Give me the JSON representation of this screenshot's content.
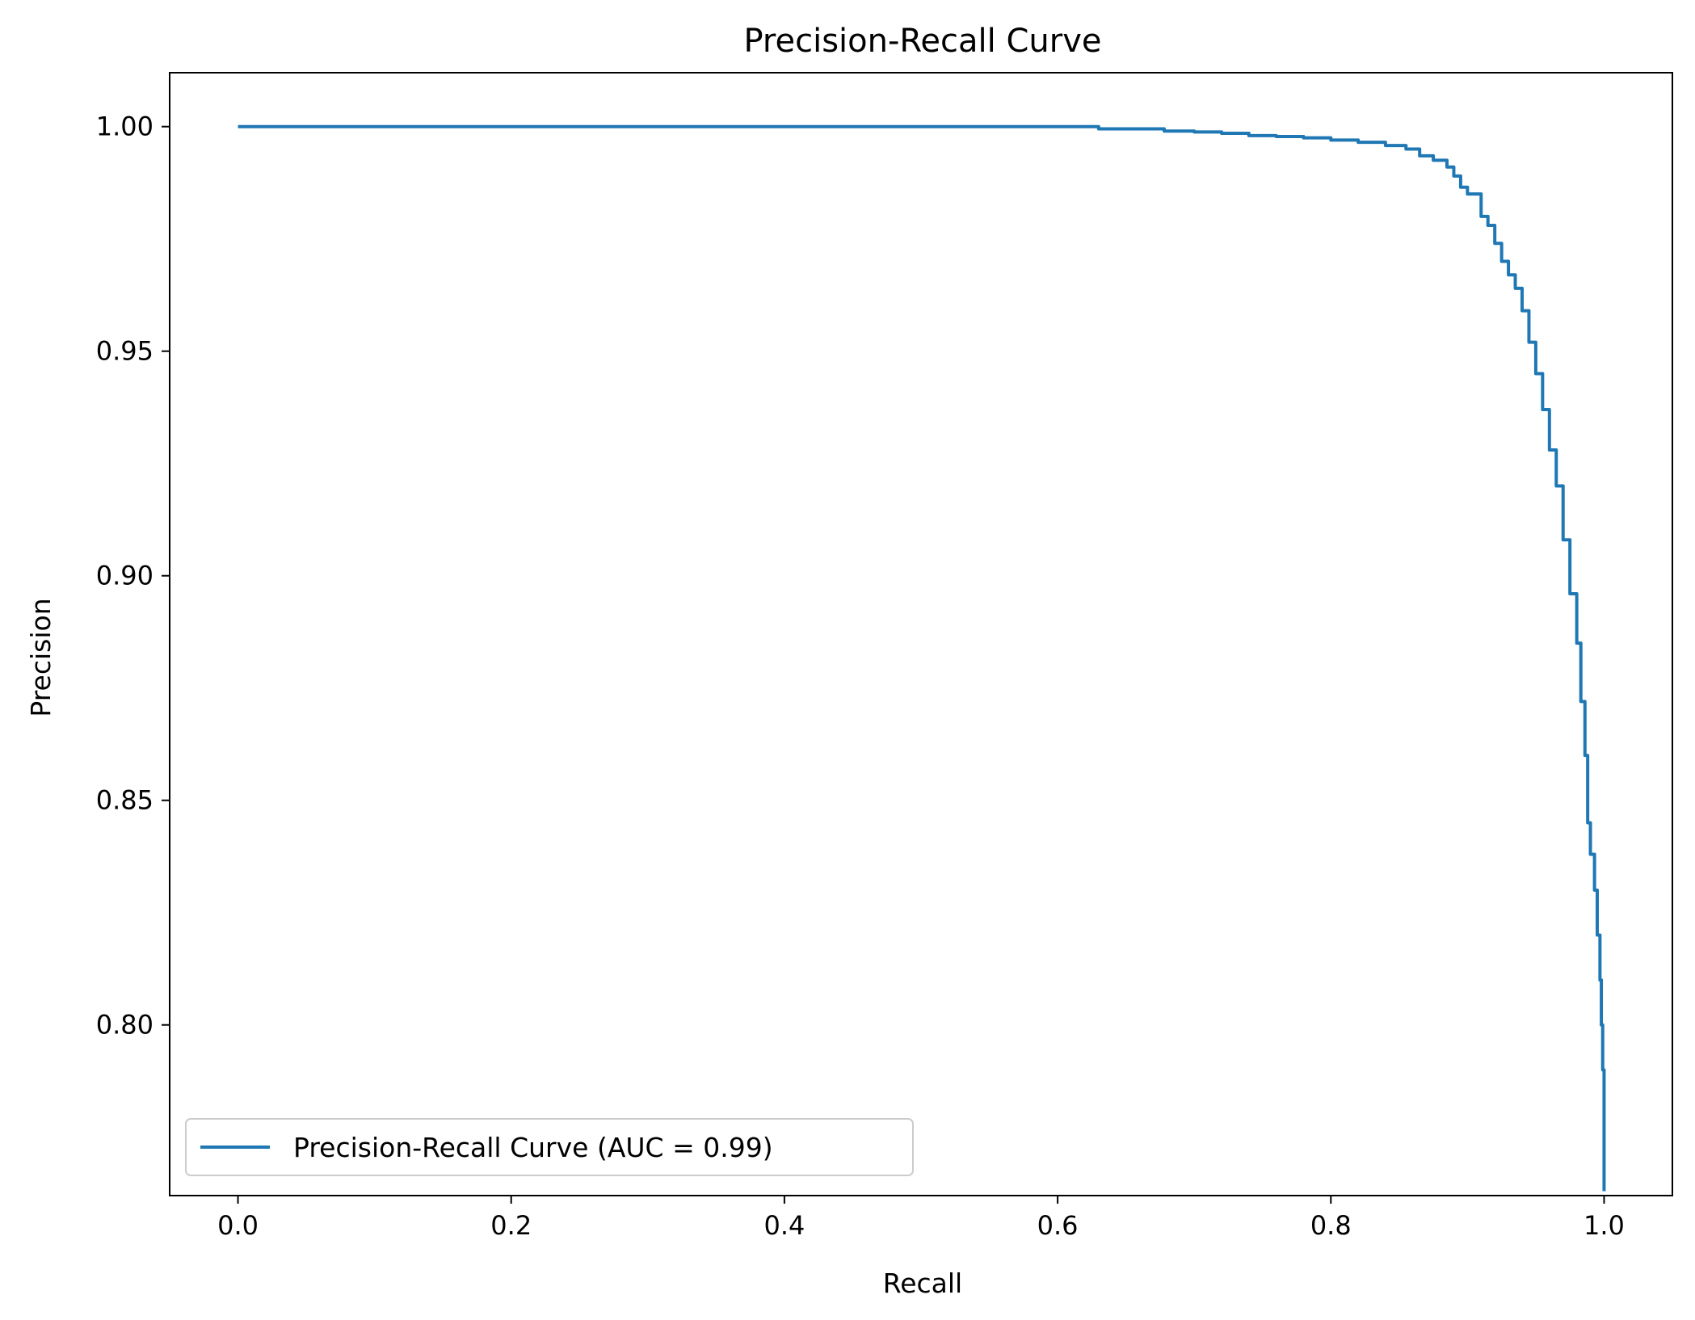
{
  "chart_data": {
    "type": "line",
    "title": "Precision-Recall Curve",
    "xlabel": "Recall",
    "ylabel": "Precision",
    "xlim": [
      -0.05,
      1.05
    ],
    "ylim": [
      0.762,
      1.012
    ],
    "xticks": [
      0.0,
      0.2,
      0.4,
      0.6,
      0.8,
      1.0
    ],
    "xtick_labels": [
      "0.0",
      "0.2",
      "0.4",
      "0.6",
      "0.8",
      "1.0"
    ],
    "yticks": [
      0.8,
      0.85,
      0.9,
      0.95,
      1.0
    ],
    "ytick_labels": [
      "0.80",
      "0.85",
      "0.90",
      "0.95",
      "1.00"
    ],
    "grid": false,
    "legend_position": "lower-left",
    "series": [
      {
        "name": "Precision-Recall Curve (AUC = 0.99)",
        "color": "#1f77b4",
        "x": [
          0.0,
          0.3,
          0.5,
          0.625,
          0.63,
          0.678,
          0.7,
          0.72,
          0.74,
          0.76,
          0.78,
          0.8,
          0.82,
          0.84,
          0.855,
          0.865,
          0.875,
          0.885,
          0.89,
          0.895,
          0.9,
          0.91,
          0.915,
          0.92,
          0.925,
          0.93,
          0.935,
          0.94,
          0.945,
          0.95,
          0.955,
          0.96,
          0.965,
          0.97,
          0.975,
          0.98,
          0.983,
          0.986,
          0.988,
          0.99,
          0.993,
          0.995,
          0.997,
          0.998,
          0.999,
          1.0,
          1.0
        ],
        "y": [
          1.0,
          1.0,
          1.0,
          1.0,
          0.9995,
          0.999,
          0.9988,
          0.9985,
          0.998,
          0.9978,
          0.9975,
          0.997,
          0.9965,
          0.9958,
          0.995,
          0.9935,
          0.9925,
          0.991,
          0.989,
          0.9865,
          0.985,
          0.98,
          0.978,
          0.974,
          0.97,
          0.967,
          0.964,
          0.959,
          0.952,
          0.945,
          0.937,
          0.928,
          0.92,
          0.908,
          0.896,
          0.885,
          0.872,
          0.86,
          0.845,
          0.838,
          0.83,
          0.82,
          0.81,
          0.8,
          0.79,
          0.775,
          0.763
        ]
      }
    ]
  }
}
